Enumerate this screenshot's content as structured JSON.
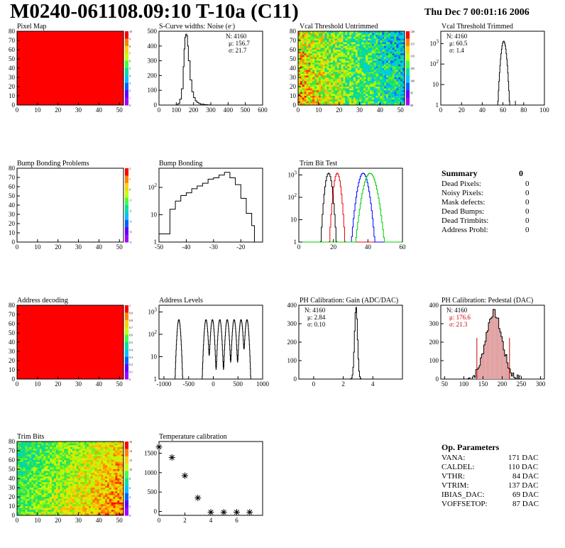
{
  "header": {
    "title": "M0240-061108.09:10 T-10a (C11)",
    "date": "Thu Dec  7 00:01:16 2006"
  },
  "colors": {
    "frame": "#000000",
    "map_red": "#ff0000",
    "trim_red": "#e8000b",
    "trim_blue": "#0000ff",
    "trim_green": "#00cc00",
    "pedestal_fill": "#e0a0a0",
    "highlight": "#cc0000"
  },
  "chart_data": [
    {
      "id": "pixel-map",
      "type": "heatmap",
      "title": "Pixel Map",
      "xlim": [
        0,
        52
      ],
      "ylim": [
        0,
        80
      ],
      "x_ticks": [
        0,
        10,
        20,
        30,
        40,
        50
      ],
      "y_ticks": [
        0,
        10,
        20,
        30,
        40,
        50,
        60,
        70,
        80
      ],
      "color_scale_ticks": [
        "0",
        "1",
        "2",
        "3",
        "4",
        "5",
        "6",
        "7",
        "8",
        "9",
        "10"
      ],
      "fill": "uniform-max"
    },
    {
      "id": "scurve",
      "type": "histogram",
      "title": "S-Curve widths: Noise (e",
      "title_sup": "-",
      "title_end": ")",
      "xlim": [
        0,
        600
      ],
      "ylim": [
        0,
        500
      ],
      "x_ticks": [
        0,
        100,
        200,
        300,
        400,
        500,
        600
      ],
      "y_ticks": [
        0,
        100,
        200,
        300,
        400,
        500
      ],
      "stats": {
        "n_label": "N: 4160",
        "mu_label": "μ: 156.7",
        "sigma_label": "σ: 21.7"
      },
      "peak": 480,
      "bins": [
        [
          90,
          0
        ],
        [
          100,
          2
        ],
        [
          110,
          10
        ],
        [
          120,
          40
        ],
        [
          130,
          110
        ],
        [
          140,
          260
        ],
        [
          145,
          380
        ],
        [
          150,
          460
        ],
        [
          155,
          480
        ],
        [
          160,
          470
        ],
        [
          165,
          400
        ],
        [
          170,
          300
        ],
        [
          180,
          170
        ],
        [
          190,
          90
        ],
        [
          200,
          50
        ],
        [
          210,
          28
        ],
        [
          220,
          18
        ],
        [
          230,
          10
        ],
        [
          240,
          6
        ],
        [
          260,
          3
        ],
        [
          280,
          1
        ],
        [
          300,
          0
        ]
      ]
    },
    {
      "id": "vcal-untrimmed",
      "type": "heatmap",
      "title": "Vcal Threshold Untrimmed",
      "xlim": [
        0,
        52
      ],
      "ylim": [
        0,
        80
      ],
      "x_ticks": [
        0,
        10,
        20,
        30,
        40,
        50
      ],
      "y_ticks": [
        0,
        10,
        20,
        30,
        40,
        50,
        60,
        70,
        80
      ],
      "color_scale_ticks": [
        "90",
        "95",
        "100",
        "105",
        "110",
        "115",
        "120"
      ]
    },
    {
      "id": "vcal-trimmed",
      "type": "histogram",
      "title": "Vcal Threshold Trimmed",
      "log_y": true,
      "xlim": [
        0,
        100
      ],
      "y_ticks_log": [
        "1",
        "10",
        "10²",
        "10³"
      ],
      "x_ticks": [
        0,
        20,
        40,
        60,
        80,
        100
      ],
      "stats": {
        "n_label": "N: 4160",
        "mu_label": "μ: 60.5",
        "sigma_label": "σ:  1.4"
      }
    },
    {
      "id": "bump-bonding-problems",
      "type": "heatmap",
      "title": "Bump Bonding Problems",
      "xlim": [
        0,
        52
      ],
      "ylim": [
        0,
        80
      ],
      "x_ticks": [
        0,
        10,
        20,
        30,
        40,
        50
      ],
      "y_ticks": [
        0,
        10,
        20,
        30,
        40,
        50,
        60,
        70,
        80
      ],
      "color_scale_ticks": [
        "-5",
        "-4",
        "-3",
        "-2",
        "-1",
        "0",
        "1",
        "2"
      ],
      "fill": "empty"
    },
    {
      "id": "bump-bonding",
      "type": "histogram",
      "title": "Bump Bonding",
      "log_y": true,
      "xlim": [
        -50,
        -12
      ],
      "x_ticks": [
        -50,
        -40,
        -30,
        -20
      ],
      "y_ticks_log": [
        "1",
        "10",
        "10²"
      ]
    },
    {
      "id": "trim-bit-test",
      "type": "histogram",
      "title": "Trim Bit Test",
      "log_y": true,
      "xlim": [
        0,
        60
      ],
      "x_ticks": [
        0,
        20,
        40,
        60
      ],
      "y_ticks_log": [
        "1",
        "10",
        "10²",
        "10³"
      ],
      "series_colors": [
        "#000000",
        "#e8000b",
        "#0000ff",
        "#00cc00"
      ]
    },
    {
      "id": "address-decoding",
      "type": "heatmap",
      "title": "Address decoding",
      "xlim": [
        0,
        52
      ],
      "ylim": [
        0,
        80
      ],
      "x_ticks": [
        0,
        10,
        20,
        30,
        40,
        50
      ],
      "y_ticks": [
        0,
        10,
        20,
        30,
        40,
        50,
        60,
        70,
        80
      ],
      "color_scale_ticks": [
        "0",
        "0.1",
        "0.2",
        "0.3",
        "0.4",
        "0.5",
        "0.6",
        "0.7",
        "0.8",
        "0.9",
        "1"
      ],
      "fill": "uniform-max"
    },
    {
      "id": "address-levels",
      "type": "histogram",
      "title": "Address Levels",
      "log_y": true,
      "xlim": [
        -1100,
        1000
      ],
      "x_ticks": [
        -1000,
        -500,
        0,
        500,
        1000
      ],
      "y_ticks_log": [
        "1",
        "10",
        "10²",
        "10³"
      ],
      "peaks": [
        -700,
        -150,
        -20,
        130,
        280,
        420,
        560,
        680
      ]
    },
    {
      "id": "ph-gain",
      "type": "histogram",
      "title": "PH Calibration: Gain (ADC/DAC)",
      "xlim": [
        -1,
        6
      ],
      "ylim": [
        0,
        400
      ],
      "x_ticks": [
        0,
        2,
        4
      ],
      "y_ticks": [
        0,
        100,
        200,
        300,
        400
      ],
      "stats": {
        "n_label": "N: 4160",
        "mu_label": "μ: 2.84",
        "sigma_label": "σ: 0.10"
      }
    },
    {
      "id": "ph-pedestal",
      "type": "histogram",
      "title": "PH Calibration: Pedestal (DAC)",
      "xlim": [
        40,
        310
      ],
      "ylim": [
        0,
        400
      ],
      "x_ticks": [
        50,
        100,
        150,
        200,
        250,
        300
      ],
      "y_ticks": [
        0,
        100,
        200,
        300,
        400
      ],
      "stats": {
        "n_label": "N: 4160",
        "mu_label": "μ: 176.6",
        "sigma_label": "σ: 21.3"
      }
    },
    {
      "id": "trim-bits",
      "type": "heatmap",
      "title": "Trim Bits",
      "xlim": [
        0,
        52
      ],
      "ylim": [
        0,
        80
      ],
      "x_ticks": [
        0,
        10,
        20,
        30,
        40,
        50
      ],
      "y_ticks": [
        0,
        10,
        20,
        30,
        40,
        50,
        60,
        70,
        80
      ],
      "color_scale_ticks": [
        "0",
        "2",
        "4",
        "6",
        "8",
        "10",
        "12",
        "14",
        "16"
      ]
    },
    {
      "id": "temperature-calibration",
      "type": "scatter",
      "title": "Temperature calibration",
      "xlim": [
        0,
        8
      ],
      "ylim": [
        -100,
        1800
      ],
      "x_ticks": [
        0,
        2,
        4,
        6
      ],
      "y_ticks": [
        0,
        500,
        1000,
        1500
      ],
      "x": [
        0,
        1,
        2,
        3,
        4,
        5,
        6,
        7
      ],
      "y": [
        1660,
        1390,
        920,
        350,
        -20,
        -20,
        -20,
        -20
      ]
    }
  ],
  "summary": {
    "title": "Summary",
    "total": "0",
    "rows": [
      {
        "label": "Dead Pixels:",
        "value": "0"
      },
      {
        "label": "Noisy Pixels:",
        "value": "0"
      },
      {
        "label": "Mask defects:",
        "value": "0"
      },
      {
        "label": "Dead Bumps:",
        "value": "0"
      },
      {
        "label": "Dead Trimbits:",
        "value": "0"
      },
      {
        "label": "Address Probl:",
        "value": "0"
      }
    ]
  },
  "op_params": {
    "title": "Op. Parameters",
    "rows": [
      {
        "label": "VANA:",
        "value": "171 DAC"
      },
      {
        "label": "CALDEL:",
        "value": "110 DAC"
      },
      {
        "label": "VTHR:",
        "value": "84 DAC"
      },
      {
        "label": "VTRIM:",
        "value": "137 DAC"
      },
      {
        "label": "IBIAS_DAC:",
        "value": "69 DAC"
      },
      {
        "label": "VOFFSETOP:",
        "value": "87 DAC"
      }
    ]
  }
}
